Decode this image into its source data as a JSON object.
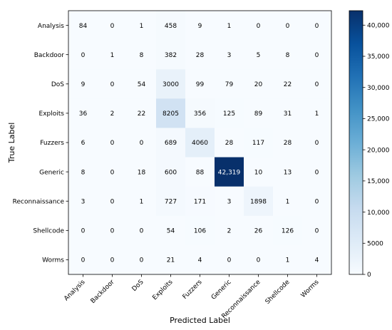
{
  "chart_data": {
    "type": "heatmap",
    "title": "",
    "xlabel": "Predicted Label",
    "ylabel": "True Label",
    "x_categories": [
      "Analysis",
      "Backdoor",
      "DoS",
      "Exploits",
      "Fuzzers",
      "Generic",
      "Reconnaissance",
      "Shellcode",
      "Worms"
    ],
    "y_categories": [
      "Analysis",
      "Backdoor",
      "DoS",
      "Exploits",
      "Fuzzers",
      "Generic",
      "Reconnaissance",
      "Shellcode",
      "Worms"
    ],
    "matrix": [
      [
        84,
        0,
        1,
        458,
        9,
        1,
        0,
        0,
        0
      ],
      [
        0,
        1,
        8,
        382,
        28,
        3,
        5,
        8,
        0
      ],
      [
        9,
        0,
        54,
        3000,
        99,
        79,
        20,
        22,
        0
      ],
      [
        36,
        2,
        22,
        8205,
        356,
        125,
        89,
        31,
        1
      ],
      [
        6,
        0,
        0,
        689,
        4060,
        28,
        117,
        28,
        0
      ],
      [
        8,
        0,
        18,
        600,
        88,
        42319,
        10,
        13,
        0
      ],
      [
        3,
        0,
        1,
        727,
        171,
        3,
        1898,
        1,
        0
      ],
      [
        0,
        0,
        0,
        54,
        106,
        2,
        26,
        126,
        0
      ],
      [
        0,
        0,
        0,
        21,
        4,
        0,
        0,
        1,
        4
      ]
    ],
    "cell_labels": [
      [
        "84",
        "0",
        "1",
        "458",
        "9",
        "1",
        "0",
        "0",
        "0"
      ],
      [
        "0",
        "1",
        "8",
        "382",
        "28",
        "3",
        "5",
        "8",
        "0"
      ],
      [
        "9",
        "0",
        "54",
        "3000",
        "99",
        "79",
        "20",
        "22",
        "0"
      ],
      [
        "36",
        "2",
        "22",
        "8205",
        "356",
        "125",
        "89",
        "31",
        "1"
      ],
      [
        "6",
        "0",
        "0",
        "689",
        "4060",
        "28",
        "117",
        "28",
        "0"
      ],
      [
        "8",
        "0",
        "18",
        "600",
        "88",
        "42,319",
        "10",
        "13",
        "0"
      ],
      [
        "3",
        "0",
        "1",
        "727",
        "171",
        "3",
        "1898",
        "1",
        "0"
      ],
      [
        "0",
        "0",
        "0",
        "54",
        "106",
        "2",
        "26",
        "126",
        "0"
      ],
      [
        "0",
        "0",
        "0",
        "21",
        "4",
        "0",
        "0",
        "1",
        "4"
      ]
    ],
    "colorbar": {
      "range": [
        0,
        42319
      ],
      "ticks": [
        0,
        5000,
        10000,
        15000,
        20000,
        25000,
        30000,
        35000,
        40000
      ],
      "tick_labels": [
        "0",
        "5000",
        "10,000",
        "15,000",
        "20,000",
        "25,000",
        "30,000",
        "35,000",
        "40,000"
      ],
      "colormap": "Blues",
      "low_color": "#f7fbff",
      "high_color": "#08306b"
    },
    "grid": false,
    "legend": "none"
  }
}
